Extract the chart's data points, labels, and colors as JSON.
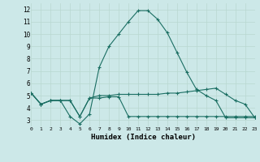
{
  "xlabel": "Humidex (Indice chaleur)",
  "xlim": [
    0,
    23
  ],
  "ylim": [
    2.5,
    12.5
  ],
  "xtick_vals": [
    0,
    1,
    2,
    3,
    4,
    5,
    6,
    7,
    8,
    9,
    10,
    11,
    12,
    13,
    14,
    15,
    16,
    17,
    18,
    19,
    20,
    21,
    22,
    23
  ],
  "xtick_labels": [
    "0",
    "1",
    "2",
    "3",
    "4",
    "5",
    "6",
    "7",
    "8",
    "9",
    "10",
    "11",
    "12",
    "13",
    "14",
    "15",
    "16",
    "17",
    "18",
    "19",
    "20",
    "21",
    "22",
    "23"
  ],
  "ytick_vals": [
    3,
    4,
    5,
    6,
    7,
    8,
    9,
    10,
    11,
    12
  ],
  "ytick_labels": [
    "3",
    "4",
    "5",
    "6",
    "7",
    "8",
    "9",
    "10",
    "11",
    "12"
  ],
  "background_color": "#cce8e8",
  "grid_color": "#b8d8d0",
  "line_color": "#1a6e62",
  "line1_x": [
    0,
    1,
    2,
    3,
    4,
    5,
    6,
    7,
    8,
    9,
    10,
    11,
    12,
    13,
    14,
    15,
    16,
    17,
    18,
    19,
    20,
    21,
    22,
    23
  ],
  "line1_y": [
    5.2,
    4.3,
    4.6,
    4.6,
    3.3,
    2.7,
    3.5,
    7.3,
    9.0,
    10.0,
    11.0,
    11.9,
    11.9,
    11.2,
    10.1,
    8.5,
    6.9,
    5.5,
    5.0,
    4.6,
    3.2,
    3.2,
    3.2,
    3.2
  ],
  "line2_x": [
    0,
    1,
    2,
    3,
    4,
    5,
    6,
    7,
    8,
    9,
    10,
    11,
    12,
    13,
    14,
    15,
    16,
    17,
    18,
    19,
    20,
    21,
    22,
    23
  ],
  "line2_y": [
    5.2,
    4.3,
    4.6,
    4.6,
    4.6,
    3.3,
    4.8,
    5.0,
    5.0,
    5.1,
    5.1,
    5.1,
    5.1,
    5.1,
    5.2,
    5.2,
    5.3,
    5.4,
    5.5,
    5.6,
    5.1,
    4.6,
    4.3,
    3.2
  ],
  "line3_x": [
    0,
    1,
    2,
    3,
    4,
    5,
    6,
    7,
    8,
    9,
    10,
    11,
    12,
    13,
    14,
    15,
    16,
    17,
    18,
    19,
    20,
    21,
    22,
    23
  ],
  "line3_y": [
    5.2,
    4.3,
    4.6,
    4.6,
    4.6,
    3.3,
    4.8,
    4.8,
    4.9,
    4.9,
    3.3,
    3.3,
    3.3,
    3.3,
    3.3,
    3.3,
    3.3,
    3.3,
    3.3,
    3.3,
    3.3,
    3.3,
    3.3,
    3.3
  ]
}
